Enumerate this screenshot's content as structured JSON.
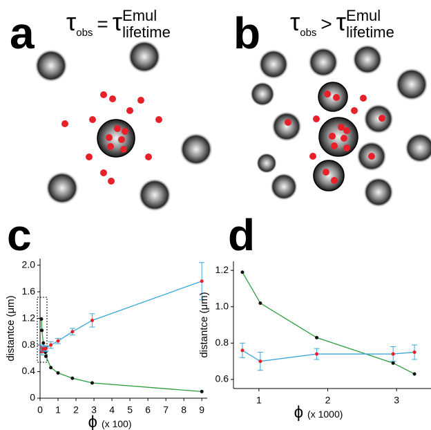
{
  "panels": {
    "a": {
      "label": "a",
      "tau": "τ",
      "sub": "obs",
      "relation": "=",
      "sup": "Emul",
      "lower": "lifetime"
    },
    "b": {
      "label": "b",
      "tau": "τ",
      "sub": "obs",
      "relation": ">",
      "sup": "Emul",
      "lower": "lifetime"
    }
  },
  "chart_data": [
    {
      "type": "line",
      "panel": "c",
      "ylabel": "distantce (μm)",
      "xlabel_symbol": "ϕ",
      "xlabel_unit": "(x 100)",
      "xlim": [
        0,
        9.3
      ],
      "xticks": [
        0,
        1,
        2,
        3,
        4,
        5,
        6,
        7,
        8,
        9
      ],
      "ylim": [
        0,
        2.1
      ],
      "yticks": [
        0,
        0.4,
        0.8,
        1.2,
        1.6,
        {
          "value": 2,
          "label": "2.0"
        }
      ],
      "series": [
        {
          "color": "#2a9d3a",
          "marker_color": "#111111",
          "x": [
            0.076,
            0.102,
            0.184,
            0.295,
            0.326,
            0.6,
            1.0,
            1.8,
            2.9,
            9.0
          ],
          "values": [
            1.19,
            1.02,
            0.83,
            0.69,
            0.63,
            0.46,
            0.38,
            0.3,
            0.23,
            0.1
          ]
        },
        {
          "color": "#3aa6dd",
          "marker_color": "#e8202a",
          "x": [
            0.076,
            0.102,
            0.184,
            0.295,
            0.326,
            0.6,
            1.0,
            1.8,
            2.9,
            9.0
          ],
          "values": [
            0.76,
            0.7,
            0.74,
            0.74,
            0.75,
            0.8,
            0.86,
            1.0,
            1.17,
            1.76
          ],
          "errors": [
            0.04,
            0.05,
            0.03,
            0.04,
            0.04,
            0.05,
            0.04,
            0.05,
            0.1,
            0.28
          ]
        }
      ]
    },
    {
      "type": "line",
      "panel": "d",
      "ylabel": "distantce (μm)",
      "xlabel_symbol": "ϕ",
      "xlabel_unit": "(x 1000)",
      "xlim": [
        0.63,
        3.5
      ],
      "xticks": [
        1,
        2,
        3
      ],
      "ylim": [
        0.55,
        1.25
      ],
      "yticks": [
        0.6,
        0.8,
        {
          "value": 1,
          "label": "1.0"
        },
        1.2
      ],
      "series": [
        {
          "color": "#2a9d3a",
          "marker_color": "#111111",
          "x": [
            0.76,
            1.02,
            1.84,
            2.95,
            3.26
          ],
          "values": [
            1.19,
            1.02,
            0.83,
            0.69,
            0.63
          ]
        },
        {
          "color": "#3aa6dd",
          "marker_color": "#e8202a",
          "x": [
            0.76,
            1.02,
            1.84,
            2.95,
            3.26
          ],
          "values": [
            0.76,
            0.7,
            0.74,
            0.74,
            0.75
          ],
          "errors": [
            0.04,
            0.05,
            0.03,
            0.04,
            0.04
          ]
        }
      ]
    }
  ]
}
